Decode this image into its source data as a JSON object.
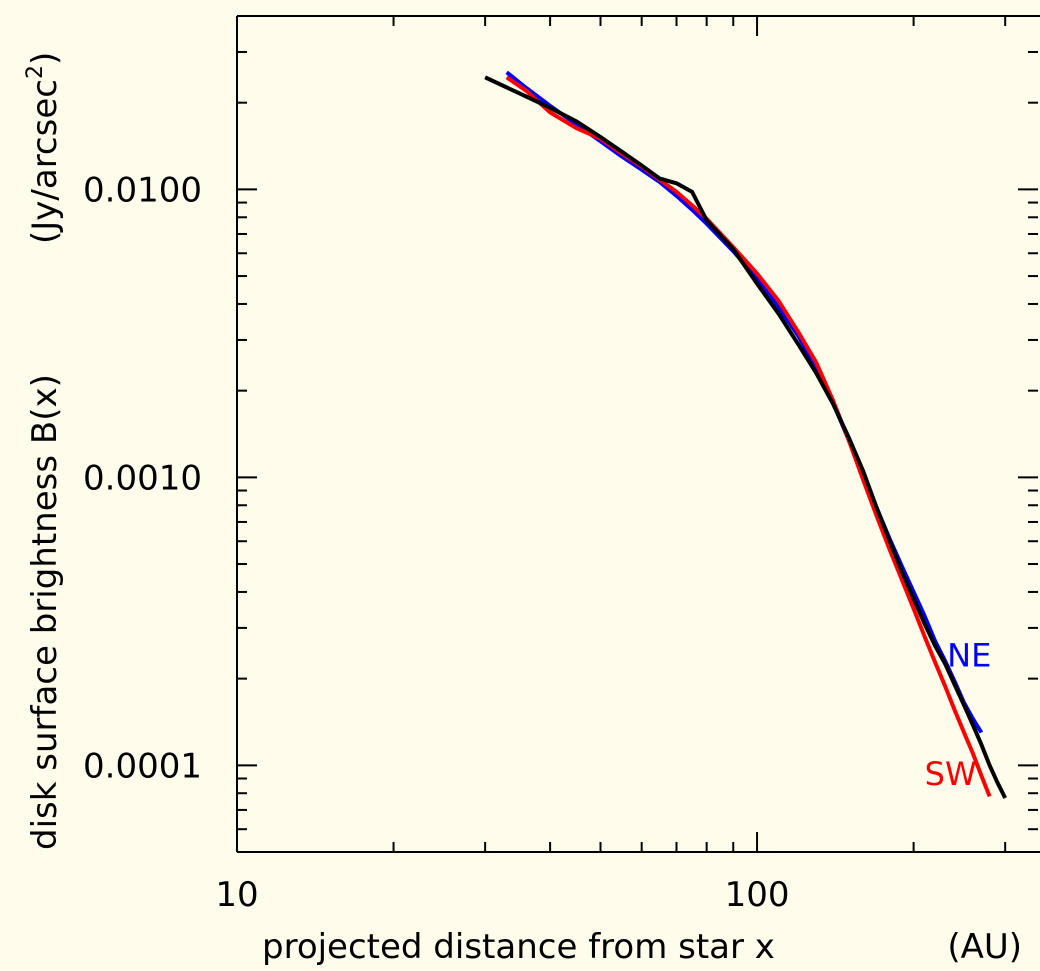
{
  "chart_data": {
    "type": "line",
    "x_scale": "log",
    "y_scale": "log",
    "xlim": [
      10,
      350
    ],
    "ylim": [
      5e-05,
      0.04
    ],
    "xlabel": "projected distance from star x",
    "xlabel_unit": "(AU)",
    "ylabel": "disk surface brightness B(x)",
    "ylabel_unit_prefix": "(Jy/arcsec",
    "ylabel_unit_sup": "2",
    "ylabel_unit_suffix": ")",
    "x_ticks": [
      {
        "value": 10,
        "label": "10"
      },
      {
        "value": 100,
        "label": "100"
      }
    ],
    "y_ticks": [
      {
        "value": 0.0001,
        "label": "0.0001"
      },
      {
        "value": 0.001,
        "label": "0.0010"
      },
      {
        "value": 0.01,
        "label": "0.0100"
      }
    ],
    "grid": false,
    "series": [
      {
        "name": "NE",
        "color": "#0000FF",
        "x": [
          33,
          36,
          40,
          45,
          50,
          55,
          60,
          65,
          70,
          75,
          80,
          90,
          100,
          110,
          120,
          130,
          140,
          150,
          160,
          170,
          180,
          190,
          200,
          210,
          220,
          230,
          240,
          250,
          260,
          270
        ],
        "y": [
          0.0255,
          0.0225,
          0.0195,
          0.0168,
          0.0147,
          0.013,
          0.0117,
          0.0106,
          0.0095,
          0.0085,
          0.0076,
          0.0061,
          0.0049,
          0.0039,
          0.0031,
          0.0024,
          0.00182,
          0.00135,
          0.00102,
          0.00078,
          0.00061,
          0.00049,
          0.0004,
          0.00033,
          0.00027,
          0.00023,
          0.000195,
          0.000165,
          0.000145,
          0.00013
        ]
      },
      {
        "name": "SW",
        "color": "#FF0000",
        "x": [
          33,
          36,
          40,
          45,
          50,
          55,
          60,
          65,
          70,
          75,
          80,
          90,
          100,
          110,
          120,
          130,
          140,
          150,
          160,
          170,
          180,
          190,
          200,
          210,
          220,
          230,
          240,
          250,
          260,
          270,
          280
        ],
        "y": [
          0.0245,
          0.022,
          0.0185,
          0.0163,
          0.015,
          0.0133,
          0.012,
          0.0108,
          0.0098,
          0.0088,
          0.0079,
          0.0063,
          0.0051,
          0.0041,
          0.0032,
          0.0025,
          0.00185,
          0.00135,
          0.00098,
          0.00073,
          0.00056,
          0.00044,
          0.00035,
          0.00028,
          0.000228,
          0.000188,
          0.000155,
          0.00013,
          0.00011,
          9.2e-05,
          7.8e-05
        ]
      },
      {
        "name": "",
        "color": "#000000",
        "x": [
          30,
          35,
          40,
          45,
          50,
          55,
          60,
          65,
          70,
          75,
          80,
          90,
          100,
          110,
          120,
          130,
          140,
          150,
          160,
          170,
          180,
          190,
          200,
          210,
          220,
          230,
          240,
          250,
          260,
          270,
          280,
          290,
          300
        ],
        "y": [
          0.0245,
          0.0215,
          0.0192,
          0.0172,
          0.0152,
          0.0135,
          0.0121,
          0.0109,
          0.0105,
          0.0098,
          0.0078,
          0.0062,
          0.0047,
          0.0037,
          0.0029,
          0.0023,
          0.0018,
          0.00138,
          0.00105,
          0.00078,
          0.0006,
          0.00047,
          0.00038,
          0.00031,
          0.00026,
          0.000225,
          0.00019,
          0.000162,
          0.000138,
          0.000118,
          0.0001,
          8.7e-05,
          7.7e-05
        ]
      }
    ],
    "annotations": [
      {
        "text": "NE",
        "color": "#0000FF",
        "x": 232,
        "y": 0.00022
      },
      {
        "text": "SW",
        "color": "#FF0000",
        "x": 210,
        "y": 8.55e-05
      }
    ]
  }
}
